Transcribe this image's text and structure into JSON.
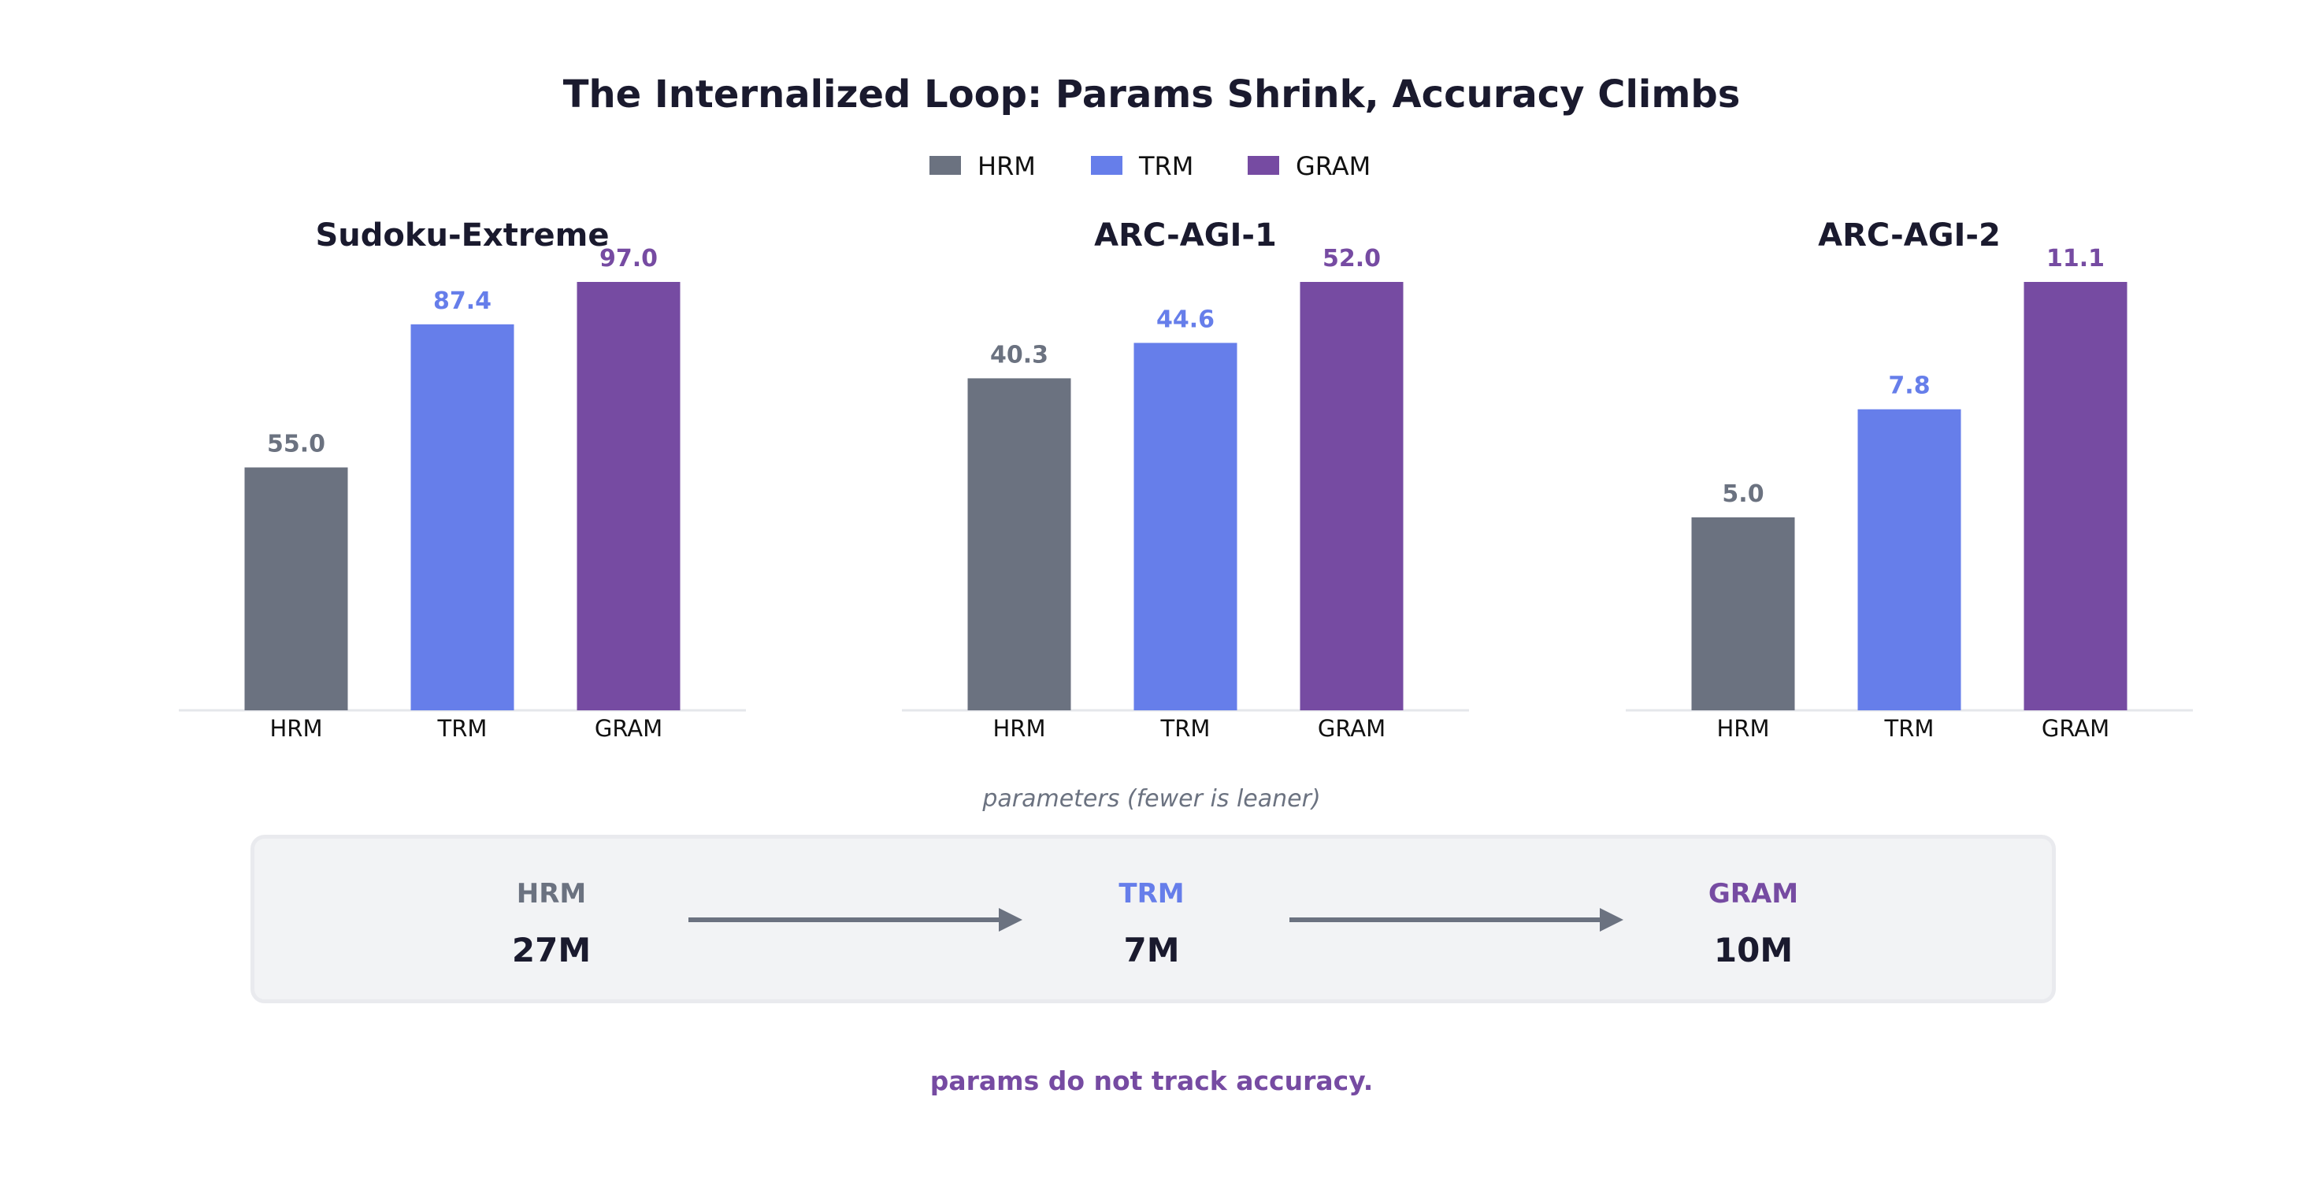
{
  "title": "The Internalized Loop: Params Shrink, Accuracy Climbs",
  "legend": [
    {
      "name": "HRM",
      "color": "#6b7280"
    },
    {
      "name": "TRM",
      "color": "#667eea"
    },
    {
      "name": "GRAM",
      "color": "#764ba2"
    }
  ],
  "chart_data": [
    {
      "type": "bar",
      "title": "Sudoku-Extreme",
      "categories": [
        "HRM",
        "TRM",
        "GRAM"
      ],
      "values": [
        55.0,
        87.4,
        97.0
      ],
      "value_labels": [
        "55.0",
        "87.4",
        "97.0"
      ],
      "colors": [
        "#6b7280",
        "#667eea",
        "#764ba2"
      ],
      "xlabel": "",
      "ylabel": "",
      "ylim": [
        0,
        97.0
      ],
      "grid": false
    },
    {
      "type": "bar",
      "title": "ARC-AGI-1",
      "categories": [
        "HRM",
        "TRM",
        "GRAM"
      ],
      "values": [
        40.3,
        44.6,
        52.0
      ],
      "value_labels": [
        "40.3",
        "44.6",
        "52.0"
      ],
      "colors": [
        "#6b7280",
        "#667eea",
        "#764ba2"
      ],
      "xlabel": "",
      "ylabel": "",
      "ylim": [
        0,
        52.0
      ],
      "grid": false
    },
    {
      "type": "bar",
      "title": "ARC-AGI-2",
      "categories": [
        "HRM",
        "TRM",
        "GRAM"
      ],
      "values": [
        5.0,
        7.8,
        11.1
      ],
      "value_labels": [
        "5.0",
        "7.8",
        "11.1"
      ],
      "colors": [
        "#6b7280",
        "#667eea",
        "#764ba2"
      ],
      "xlabel": "",
      "ylabel": "",
      "ylim": [
        0,
        11.1
      ],
      "grid": false
    }
  ],
  "params": {
    "caption": "parameters (fewer is leaner)",
    "items": [
      {
        "name": "HRM",
        "value": "27M",
        "color": "#6b7280"
      },
      {
        "name": "TRM",
        "value": "7M",
        "color": "#667eea"
      },
      {
        "name": "GRAM",
        "value": "10M",
        "color": "#764ba2"
      }
    ]
  },
  "footnote": "params do not track accuracy."
}
